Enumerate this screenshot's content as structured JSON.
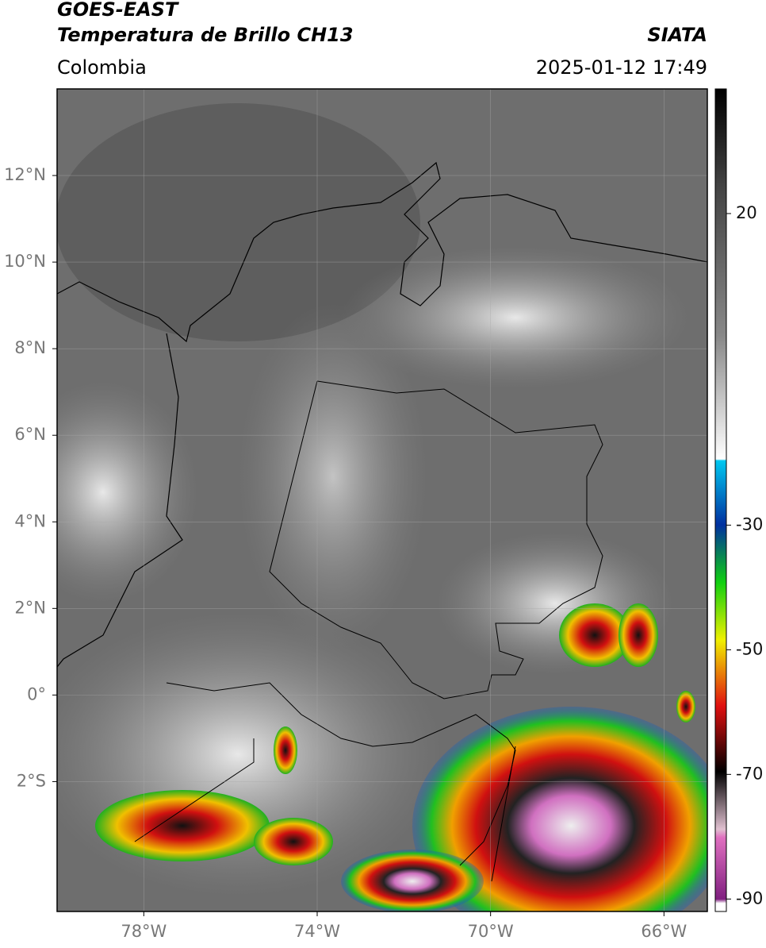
{
  "map": {
    "satellite": "GOES-EAST",
    "product": "Temperatura de Brillo CH13",
    "region": "Colombia",
    "source": "SIATA",
    "datetime": "2025-01-12 17:49",
    "lat_range": [
      -5,
      14
    ],
    "lon_range": [
      -80,
      -65
    ],
    "lat_ticks": [
      {
        "value": 12,
        "label": "12°N"
      },
      {
        "value": 10,
        "label": "10°N"
      },
      {
        "value": 8,
        "label": "8°N"
      },
      {
        "value": 6,
        "label": "6°N"
      },
      {
        "value": 4,
        "label": "4°N"
      },
      {
        "value": 2,
        "label": "2°N"
      },
      {
        "value": 0,
        "label": "0°"
      },
      {
        "value": -2,
        "label": "2°S"
      }
    ],
    "lon_ticks": [
      {
        "value": -78,
        "label": "78°W"
      },
      {
        "value": -74,
        "label": "74°W"
      },
      {
        "value": -70,
        "label": "70°W"
      },
      {
        "value": -66,
        "label": "66°W"
      }
    ],
    "colorbar": {
      "range": [
        -92,
        40
      ],
      "ticks": [
        20,
        -30,
        -50,
        -70,
        -90
      ]
    }
  }
}
